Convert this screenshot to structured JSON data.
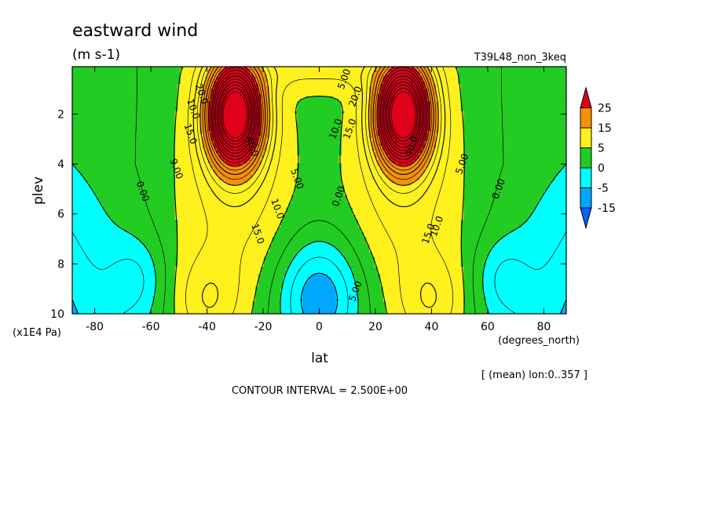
{
  "chart_data": {
    "type": "heatmap",
    "title": "eastward wind",
    "units": "(m s-1)",
    "run_label": "T39L48_non_3keq",
    "xlabel": "lat",
    "xunits": "(degrees_north)",
    "ylabel": "plev",
    "yunits": "(x1E4 Pa)",
    "xlim": [
      -88,
      88
    ],
    "ylim": [
      10,
      0.1
    ],
    "xticks": [
      "-80",
      "-60",
      "-40",
      "-20",
      "0",
      "20",
      "40",
      "60",
      "80"
    ],
    "yticks": [
      "2",
      "4",
      "6",
      "8",
      "10"
    ],
    "subtitle": "[ (mean) lon:0..357 ]",
    "footer": "CONTOUR INTERVAL = 2.500E+00",
    "colorbar": {
      "labels": [
        "25",
        "15",
        "5",
        "0",
        "-5",
        "-15"
      ],
      "colors": [
        "#e0001a",
        "#f4900c",
        "#fff11e",
        "#22cc22",
        "#00ffff",
        "#00a8ff",
        "#0064ff"
      ]
    },
    "jets": [
      {
        "lat": -30,
        "plev": 2.0,
        "max_speed": 45
      },
      {
        "lat": 30,
        "plev": 2.0,
        "max_speed": 45
      }
    ],
    "contour_labels": [
      {
        "text": "5.00",
        "lat": 9,
        "plev": 0.6
      },
      {
        "text": "20.0",
        "lat": -42,
        "plev": 1.2
      },
      {
        "text": "15.0",
        "lat": -46,
        "plev": 2.8
      },
      {
        "text": "10.0",
        "lat": -45,
        "plev": 1.8
      },
      {
        "text": "9.00",
        "lat": -51,
        "plev": 4.2
      },
      {
        "text": "0.00",
        "lat": -63,
        "plev": 5.1
      },
      {
        "text": "40.0",
        "lat": -24,
        "plev": 3.3
      },
      {
        "text": "10.0",
        "lat": -15,
        "plev": 5.8
      },
      {
        "text": "5.00",
        "lat": -8,
        "plev": 4.6
      },
      {
        "text": "15.0",
        "lat": -22,
        "plev": 6.8
      },
      {
        "text": "10.0",
        "lat": 6,
        "plev": 2.6
      },
      {
        "text": "15.0",
        "lat": 11,
        "plev": 2.6
      },
      {
        "text": "20.0",
        "lat": 13,
        "plev": 1.3
      },
      {
        "text": "0.00",
        "lat": 7,
        "plev": 5.3
      },
      {
        "text": "40.0",
        "lat": 33,
        "plev": 3.3
      },
      {
        "text": "5.00",
        "lat": 51,
        "plev": 4.0
      },
      {
        "text": "15.0",
        "lat": 39,
        "plev": 6.8
      },
      {
        "text": "10.0",
        "lat": 42,
        "plev": 6.5
      },
      {
        "text": "0.00",
        "lat": 64,
        "plev": 5.0
      },
      {
        "text": "5.00",
        "lat": 13,
        "plev": 9.1
      }
    ]
  }
}
